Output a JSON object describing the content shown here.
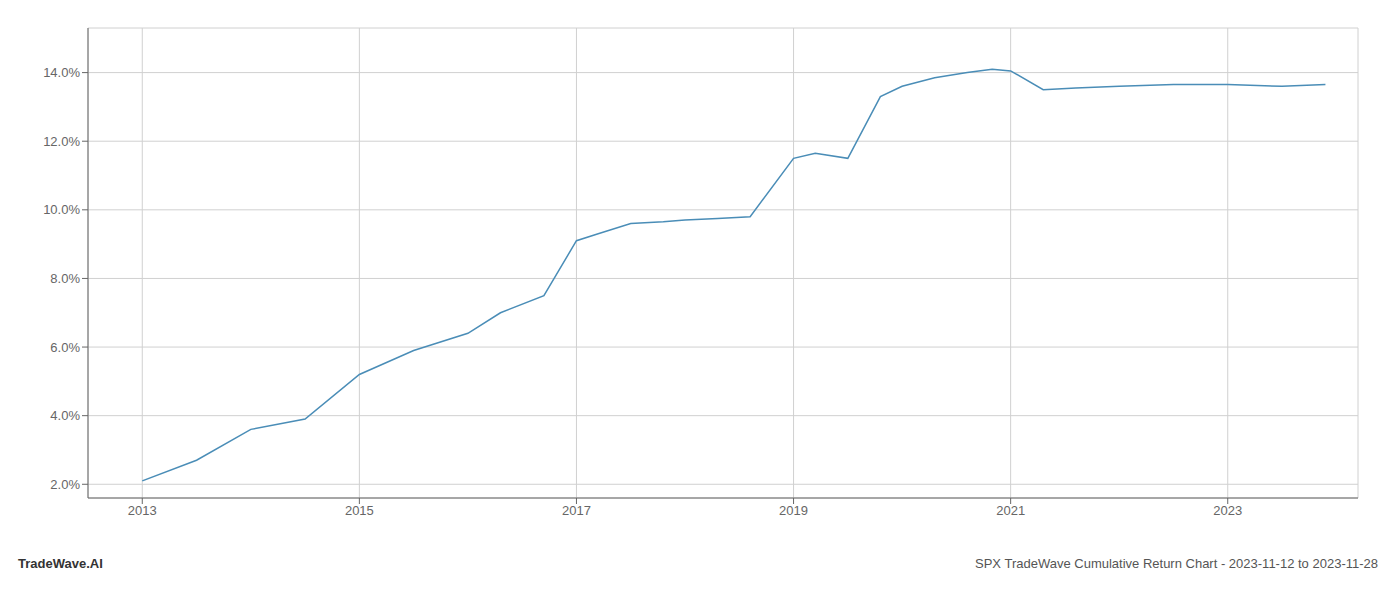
{
  "chart_data": {
    "type": "line",
    "x": [
      2013.0,
      2013.5,
      2014.0,
      2014.5,
      2015.0,
      2015.5,
      2016.0,
      2016.3,
      2016.7,
      2017.0,
      2017.2,
      2017.5,
      2017.8,
      2018.0,
      2018.3,
      2018.6,
      2019.0,
      2019.2,
      2019.5,
      2019.8,
      2020.0,
      2020.3,
      2020.6,
      2020.83,
      2021.0,
      2021.3,
      2021.6,
      2022.0,
      2022.5,
      2023.0,
      2023.5,
      2023.9
    ],
    "values": [
      2.1,
      2.7,
      3.6,
      3.9,
      5.2,
      5.9,
      6.4,
      7.0,
      7.5,
      9.1,
      9.3,
      9.6,
      9.65,
      9.7,
      9.75,
      9.8,
      11.5,
      11.65,
      11.5,
      13.3,
      13.6,
      13.85,
      14.0,
      14.1,
      14.05,
      13.5,
      13.55,
      13.6,
      13.65,
      13.65,
      13.6,
      13.65
    ],
    "color": "#4a8db7",
    "xlim": [
      2012.5,
      2024.2
    ],
    "xticks": [
      2013,
      2015,
      2017,
      2019,
      2021,
      2023
    ],
    "ylim": [
      1.6,
      15.3
    ],
    "yticks": [
      {
        "value": 2.0,
        "label": "2.0%"
      },
      {
        "value": 4.0,
        "label": "4.0%"
      },
      {
        "value": 6.0,
        "label": "6.0%"
      },
      {
        "value": 8.0,
        "label": "8.0%"
      },
      {
        "value": 10.0,
        "label": "10.0%"
      },
      {
        "value": 12.0,
        "label": "12.0%"
      },
      {
        "value": 14.0,
        "label": "14.0%"
      }
    ],
    "grid": true,
    "annotations": [
      "TradeWave.AI",
      "SPX TradeWave Cumulative Return Chart - 2023-11-12 to 2023-11-28"
    ]
  }
}
